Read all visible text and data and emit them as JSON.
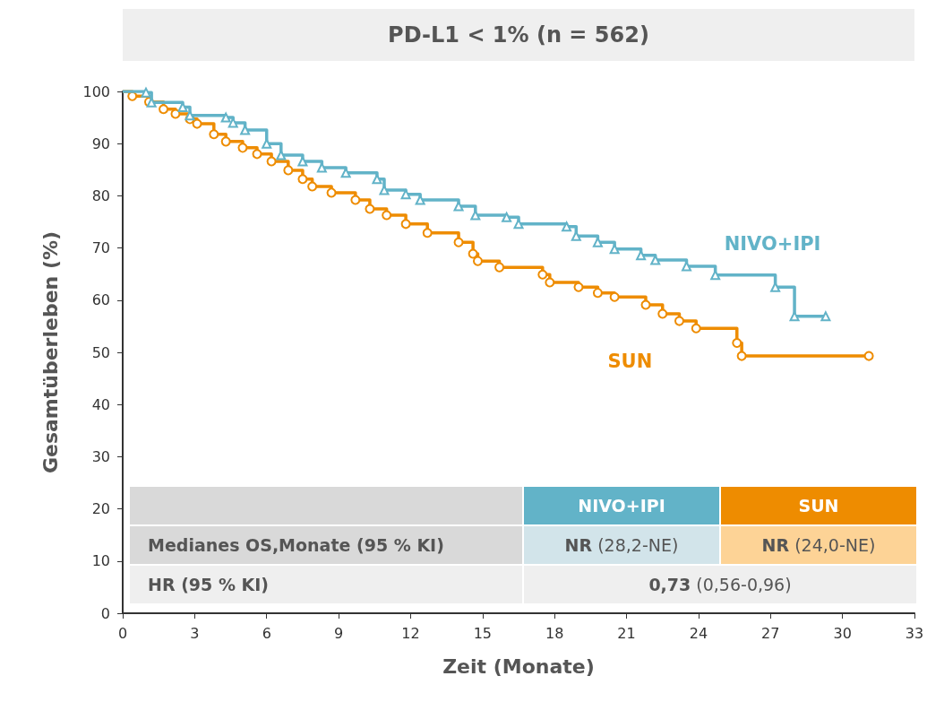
{
  "chart_data": {
    "type": "step",
    "title": "PD-L1 < 1% (n = 562)",
    "xlabel": "Zeit (Monate)",
    "ylabel": "Gesamtüberleben (%)",
    "xlim": [
      0,
      33
    ],
    "xticks": [
      0,
      3,
      6,
      9,
      12,
      15,
      18,
      21,
      24,
      27,
      30,
      33
    ],
    "ylim": [
      0,
      100
    ],
    "yticks": [
      0,
      10,
      20,
      30,
      40,
      50,
      60,
      70,
      80,
      90,
      100
    ],
    "grid": false,
    "legend": false,
    "series": [
      {
        "name": "NIVO+IPI",
        "color": "#62b3c8",
        "marker": "triangle",
        "x": [
          0,
          0.97,
          1.2,
          2.5,
          2.8,
          4.3,
          4.6,
          5.1,
          6.0,
          6.6,
          7.5,
          8.3,
          9.3,
          10.6,
          10.9,
          11.8,
          12.4,
          14.0,
          14.7,
          16.0,
          16.5,
          18.5,
          18.9,
          19.8,
          20.5,
          21.6,
          22.2,
          23.5,
          24.7,
          27.2,
          28.0,
          29.3
        ],
        "values": [
          100,
          99.8,
          97.9,
          97,
          95.4,
          95,
          94,
          92.6,
          90,
          87.8,
          86.6,
          85.4,
          84.4,
          83.2,
          81.1,
          80.3,
          79.2,
          78,
          76.3,
          75.9,
          74.6,
          74.1,
          72.3,
          71.1,
          69.8,
          68.6,
          67.7,
          66.5,
          64.8,
          62.5,
          56.9,
          56.9
        ]
      },
      {
        "name": "SUN",
        "color": "#ee8c00",
        "marker": "circle",
        "x": [
          0,
          0.4,
          1.1,
          1.7,
          2.2,
          2.8,
          3.1,
          3.8,
          4.3,
          5.0,
          5.6,
          6.2,
          6.9,
          7.5,
          7.9,
          8.7,
          9.7,
          10.3,
          11.0,
          11.8,
          12.7,
          14.0,
          14.6,
          14.8,
          15.7,
          17.5,
          17.8,
          19.0,
          19.8,
          20.5,
          21.8,
          22.5,
          23.2,
          23.9,
          25.6,
          25.8,
          31.1
        ],
        "values": [
          100,
          99.1,
          98,
          96.6,
          95.7,
          94.7,
          93.8,
          91.8,
          90.4,
          89.2,
          88,
          86.6,
          84.9,
          83.2,
          81.8,
          80.6,
          79.2,
          77.5,
          76.3,
          74.6,
          72.9,
          71.1,
          68.9,
          67.5,
          66.3,
          64.9,
          63.4,
          62.5,
          61.4,
          60.6,
          59.1,
          57.4,
          56,
          54.6,
          51.8,
          49.3,
          49.3
        ]
      }
    ],
    "annotations": [
      "Medianes OS,Monate (95 % KI)",
      "NR (28,2-NE)",
      "NR (24,0-NE)",
      "HR (95 % KI)",
      "0,73 (0,56-0,96)"
    ]
  }
}
